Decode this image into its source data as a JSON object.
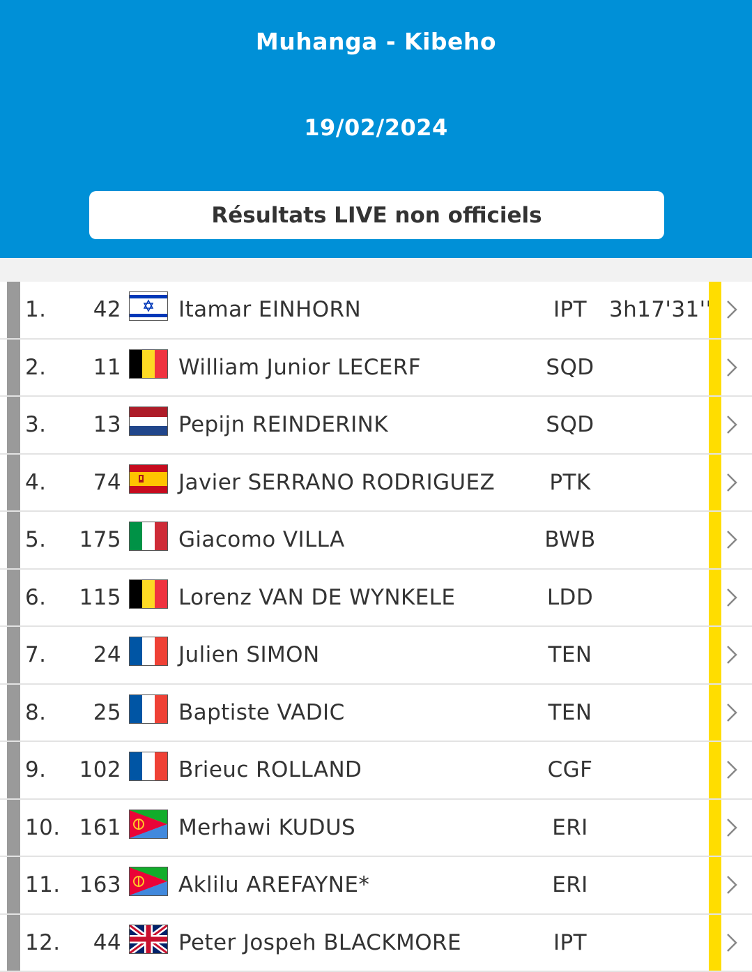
{
  "header": {
    "title": "Muhanga - Kibeho",
    "date": "19/02/2024",
    "banner": "Résultats LIVE non officiels"
  },
  "colors": {
    "header_bg": "#0090d7",
    "leader_bar": "#ffdd00",
    "left_bar": "#9a9a9a"
  },
  "results": [
    {
      "rank": "1.",
      "bib": "42",
      "flag": "israel",
      "name": "Itamar EINHORN",
      "team": "IPT",
      "time": "3h17'31''"
    },
    {
      "rank": "2.",
      "bib": "11",
      "flag": "belgium",
      "name": "William Junior LECERF",
      "team": "SQD",
      "time": ""
    },
    {
      "rank": "3.",
      "bib": "13",
      "flag": "netherlands",
      "name": "Pepijn REINDERINK",
      "team": "SQD",
      "time": ""
    },
    {
      "rank": "4.",
      "bib": "74",
      "flag": "spain",
      "name": "Javier SERRANO RODRIGUEZ",
      "team": "PTK",
      "time": ""
    },
    {
      "rank": "5.",
      "bib": "175",
      "flag": "italy",
      "name": "Giacomo VILLA",
      "team": "BWB",
      "time": ""
    },
    {
      "rank": "6.",
      "bib": "115",
      "flag": "belgium",
      "name": "Lorenz VAN DE WYNKELE",
      "team": "LDD",
      "time": ""
    },
    {
      "rank": "7.",
      "bib": "24",
      "flag": "france",
      "name": "Julien SIMON",
      "team": "TEN",
      "time": ""
    },
    {
      "rank": "8.",
      "bib": "25",
      "flag": "france",
      "name": "Baptiste VADIC",
      "team": "TEN",
      "time": ""
    },
    {
      "rank": "9.",
      "bib": "102",
      "flag": "france",
      "name": "Brieuc ROLLAND",
      "team": "CGF",
      "time": ""
    },
    {
      "rank": "10.",
      "bib": "161",
      "flag": "eritrea",
      "name": "Merhawi KUDUS",
      "team": "ERI",
      "time": ""
    },
    {
      "rank": "11.",
      "bib": "163",
      "flag": "eritrea",
      "name": "Aklilu AREFAYNE*",
      "team": "ERI",
      "time": ""
    },
    {
      "rank": "12.",
      "bib": "44",
      "flag": "united-kingdom",
      "name": "Peter Jospeh BLACKMORE",
      "team": "IPT",
      "time": ""
    }
  ]
}
